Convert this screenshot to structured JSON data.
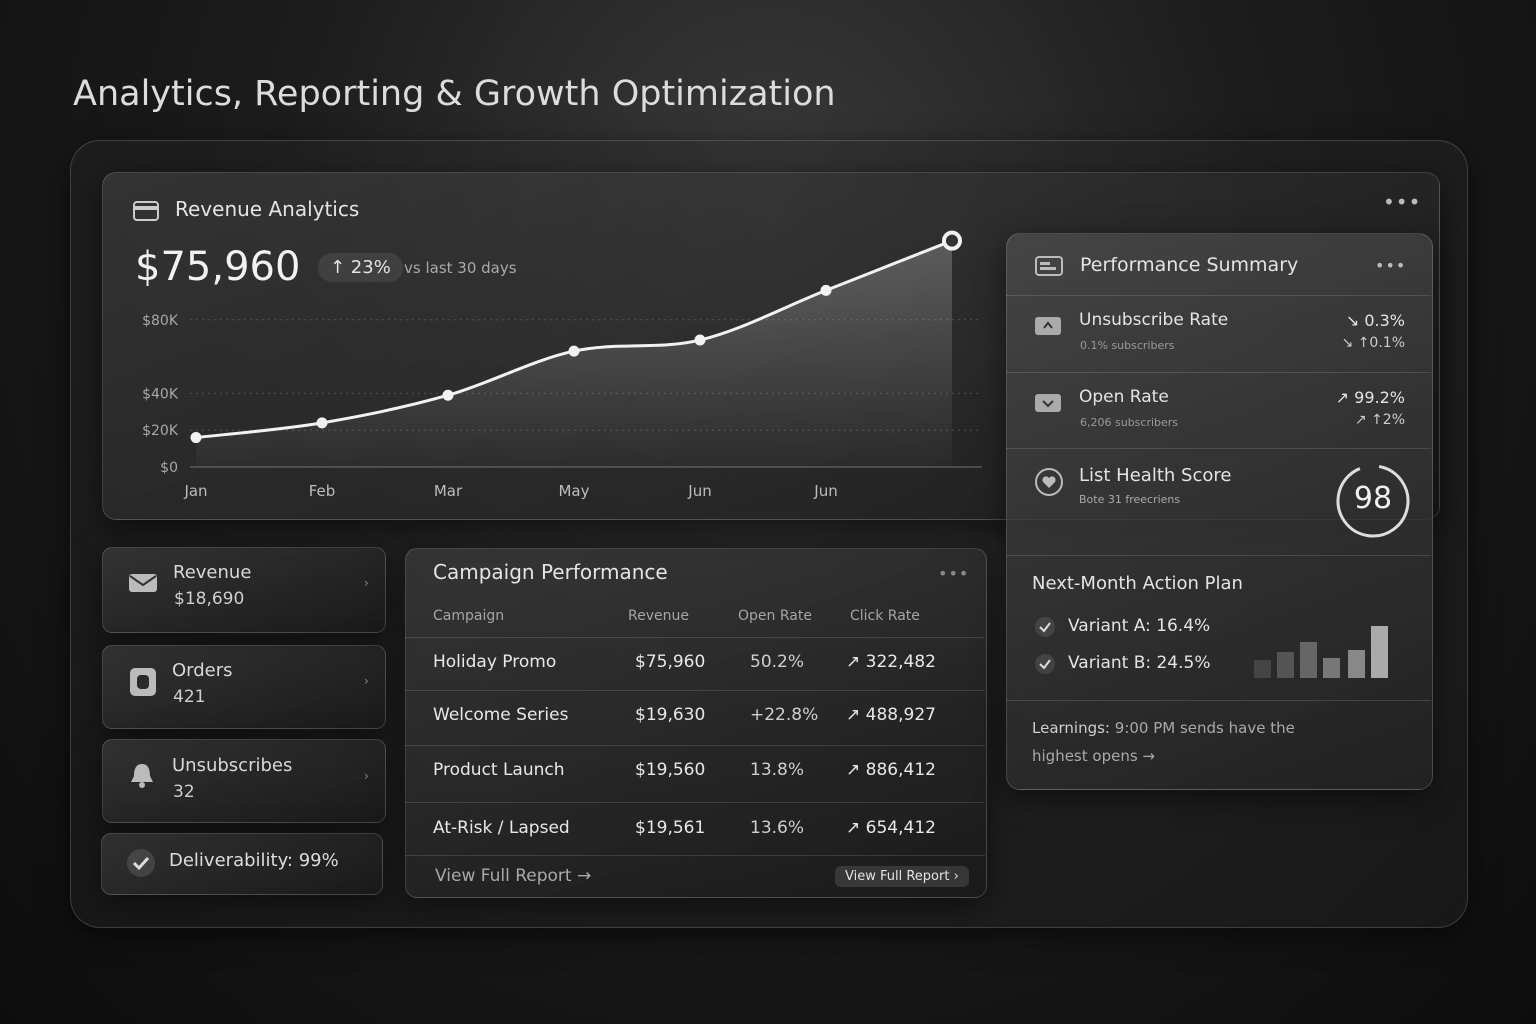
{
  "page_title": "Analytics, Reporting & Growth Optimization",
  "revenue_analytics": {
    "title": "Revenue Analytics",
    "total": "$75,960",
    "change": "↑ 23%",
    "change_note": "vs last 30 days"
  },
  "chart_data": {
    "type": "line",
    "categories": [
      "Jan",
      "Feb",
      "Mar",
      "May",
      "Jun",
      "Jun",
      null
    ],
    "values": [
      16000,
      24000,
      39000,
      63000,
      69000,
      96000,
      123000
    ],
    "color": "#f2f2f2",
    "ylim": [
      0,
      125000
    ],
    "yticks": [
      {
        "value": 0,
        "label": "$0"
      },
      {
        "value": 20000,
        "label": "$20K"
      },
      {
        "value": 40000,
        "label": "$40K"
      },
      {
        "value": 80000,
        "label": "$80K"
      }
    ],
    "grid": true
  },
  "stat_cards": [
    {
      "label": "Revenue",
      "value": "$18,690"
    },
    {
      "label": "Orders",
      "value": "421"
    },
    {
      "label": "Unsubscribes",
      "value": "32"
    }
  ],
  "deliverability": "Deliverability: 99%",
  "campaign_performance": {
    "title": "Campaign Performance",
    "columns": [
      "Campaign",
      "Revenue",
      "Open Rate",
      "Click Rate"
    ],
    "rows": [
      [
        "Holiday Promo",
        "$75,960",
        "50.2%",
        "↗ 322,482"
      ],
      [
        "Welcome Series",
        "$19,630",
        "+22.8%",
        "↗ 488,927"
      ],
      [
        "Product Launch",
        "$19,560",
        "13.8%",
        "↗ 886,412"
      ],
      [
        "At-Risk / Lapsed",
        "$19,561",
        "13.6%",
        "↗ 654,412"
      ]
    ],
    "footer_link": "View Full Report →",
    "button": "View Full Report ›"
  },
  "performance_summary": {
    "title": "Performance Summary",
    "items": [
      {
        "label": "Unsubscribe Rate",
        "sub": "0.1% subscribers",
        "value": "↘ 0.3%",
        "change": "↘ ↑0.1%"
      },
      {
        "label": "Open Rate",
        "sub": "6,206 subscribers",
        "value": "↗ 99.2%",
        "change": "↗ ↑2%"
      }
    ],
    "health": {
      "label": "List Health Score",
      "sub": "Bote 31 freecriens",
      "score": "98"
    },
    "action_plan": {
      "title": "Next-Month Action Plan",
      "variants": [
        "Variant A: 16.4%",
        "Variant B: 24.5%"
      ]
    },
    "learnings": {
      "label": "Learnings:",
      "text": "9:00 PM sends have the highest opens →"
    }
  }
}
